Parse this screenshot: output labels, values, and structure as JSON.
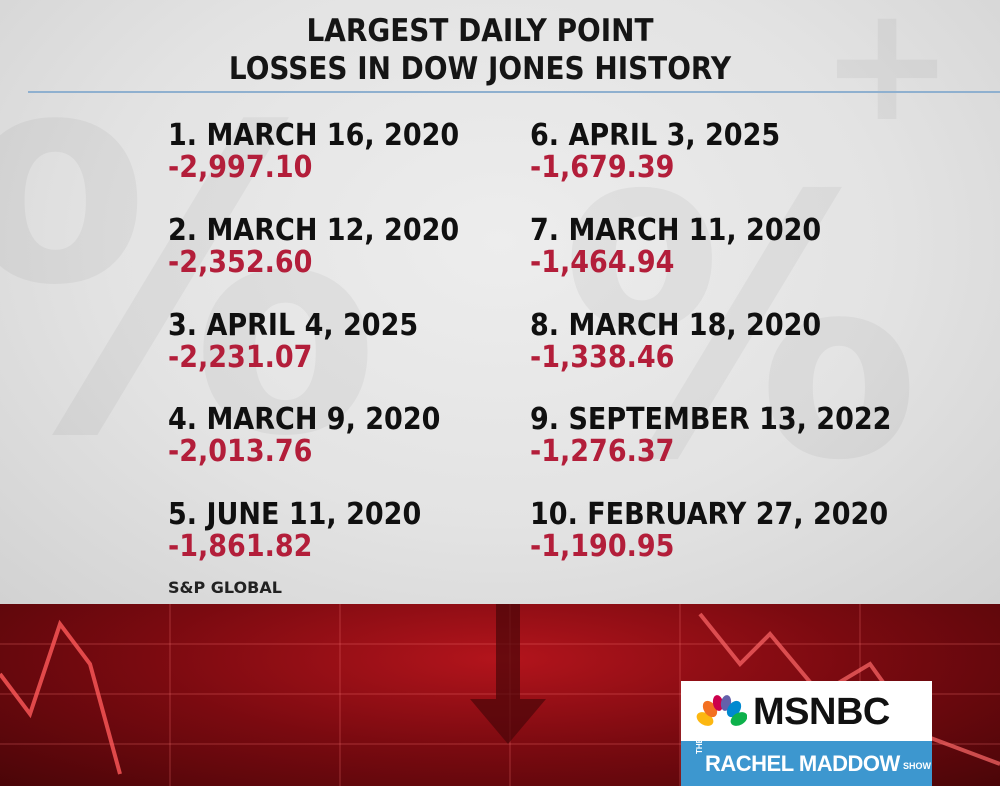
{
  "graphic": {
    "title_line1": "LARGEST DAILY POINT",
    "title_line2": "LOSSES IN DOW JONES HISTORY",
    "source": "S&P GLOBAL"
  },
  "entries": [
    {
      "label": "1. MARCH 16, 2020",
      "value": "-2,997.10"
    },
    {
      "label": "2. MARCH 12, 2020",
      "value": "-2,352.60"
    },
    {
      "label": "3. APRIL 4, 2025",
      "value": "-2,231.07"
    },
    {
      "label": "4. MARCH 9, 2020",
      "value": "-2,013.76"
    },
    {
      "label": "5. JUNE 11, 2020",
      "value": "-1,861.82"
    },
    {
      "label": "6. APRIL 3, 2025",
      "value": "-1,679.39"
    },
    {
      "label": "7. MARCH 11, 2020",
      "value": "-1,464.94"
    },
    {
      "label": "8. MARCH 18, 2020",
      "value": "-1,338.46"
    },
    {
      "label": "9. SEPTEMBER 13, 2022",
      "value": "-1,276.37"
    },
    {
      "label": "10. FEBRUARY 27, 2020",
      "value": "-1,190.95"
    }
  ],
  "logo": {
    "network": "MSNBC",
    "show_prefix": "THE",
    "show_name": "RACHEL MADDOW",
    "show_suffix": "SHOW",
    "peacock_icon": "nbc-peacock-icon"
  },
  "colors": {
    "loss_value": "#b31e3a",
    "label_text": "#101010",
    "show_banner": "#3d97cf"
  }
}
